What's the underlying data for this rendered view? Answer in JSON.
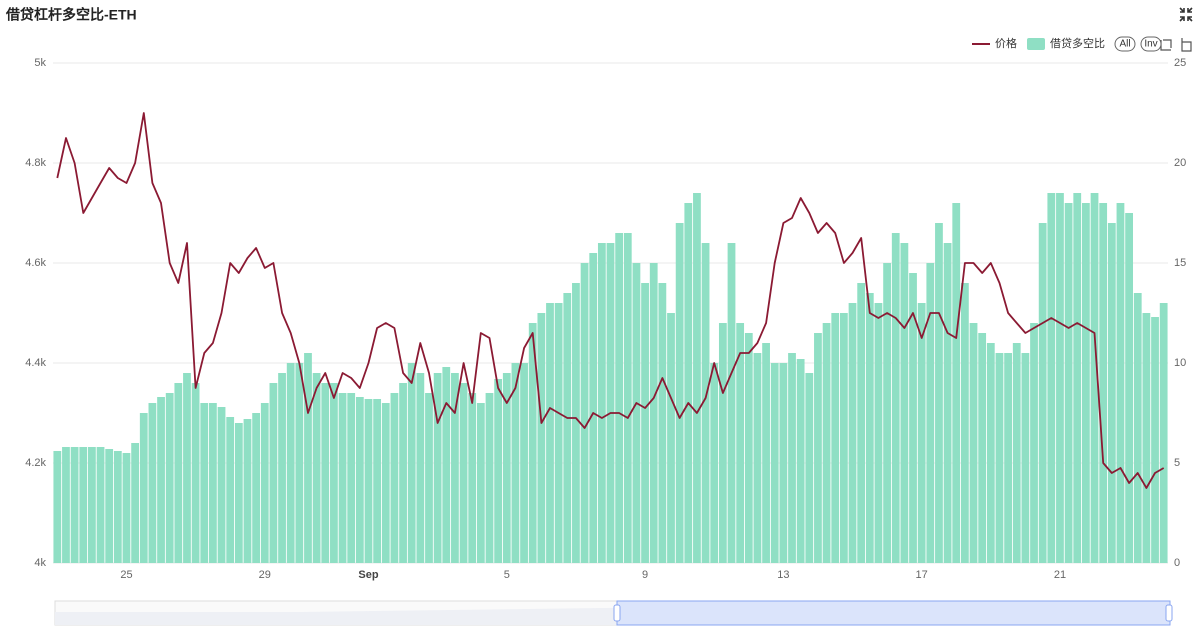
{
  "chart_data": {
    "type": "combo",
    "title": "借贷杠杆多空比-ETH",
    "buttons": [
      "All",
      "Inv"
    ],
    "categories": [
      null,
      null,
      null,
      null,
      null,
      null,
      null,
      null,
      "25",
      null,
      null,
      null,
      null,
      null,
      null,
      null,
      null,
      null,
      null,
      null,
      null,
      null,
      null,
      null,
      "29",
      null,
      null,
      null,
      null,
      null,
      null,
      null,
      null,
      null,
      null,
      null,
      "Sep",
      null,
      null,
      null,
      null,
      null,
      null,
      null,
      null,
      null,
      null,
      null,
      null,
      null,
      null,
      null,
      "5",
      null,
      null,
      null,
      null,
      null,
      null,
      null,
      null,
      null,
      null,
      null,
      null,
      null,
      null,
      null,
      "9",
      null,
      null,
      null,
      null,
      null,
      null,
      null,
      null,
      null,
      null,
      null,
      null,
      null,
      null,
      null,
      "13",
      null,
      null,
      null,
      null,
      null,
      null,
      null,
      null,
      null,
      null,
      null,
      null,
      null,
      null,
      null,
      "17",
      null,
      null,
      null,
      null,
      null,
      null,
      null,
      null,
      null,
      null,
      null,
      null,
      null,
      null,
      null,
      "21",
      null,
      null,
      null,
      null,
      null,
      null,
      null,
      null,
      null,
      null,
      null,
      null
    ],
    "series": [
      {
        "name": "价格",
        "type": "line",
        "axis": "y",
        "color": "#8b1a33",
        "values": [
          4770,
          4850,
          4800,
          4700,
          4730,
          4760,
          4790,
          4770,
          4760,
          4800,
          4900,
          4760,
          4720,
          4600,
          4560,
          4640,
          4350,
          4420,
          4440,
          4500,
          4600,
          4580,
          4610,
          4630,
          4590,
          4600,
          4500,
          4460,
          4400,
          4300,
          4350,
          4380,
          4330,
          4380,
          4370,
          4350,
          4400,
          4470,
          4480,
          4470,
          4380,
          4360,
          4440,
          4380,
          4280,
          4320,
          4300,
          4400,
          4320,
          4460,
          4450,
          4350,
          4320,
          4350,
          4430,
          4460,
          4280,
          4310,
          4300,
          4290,
          4290,
          4270,
          4300,
          4290,
          4300,
          4300,
          4290,
          4320,
          4310,
          4330,
          4370,
          4330,
          4290,
          4320,
          4300,
          4330,
          4400,
          4340,
          4380,
          4420,
          4420,
          4440,
          4480,
          4600,
          4680,
          4690,
          4730,
          4700,
          4660,
          4680,
          4660,
          4600,
          4620,
          4650,
          4500,
          4490,
          4500,
          4490,
          4470,
          4500,
          4450,
          4500,
          4500,
          4460,
          4450,
          4600,
          4600,
          4580,
          4600,
          4560,
          4500,
          4480,
          4460,
          4470,
          4480,
          4490,
          4480,
          4470,
          4480,
          4470,
          4460,
          4200,
          4180,
          4190,
          4160,
          4180,
          4150,
          4180,
          4190
        ]
      },
      {
        "name": "借贷多空比",
        "type": "bar",
        "axis": "y2",
        "color": "#8fdfc4",
        "values": [
          5.6,
          5.8,
          5.8,
          5.8,
          5.8,
          5.8,
          5.7,
          5.6,
          5.5,
          6,
          7.5,
          8,
          8.3,
          8.5,
          9,
          9.5,
          9,
          8,
          8,
          7.8,
          7.3,
          7,
          7.2,
          7.5,
          8,
          9,
          9.5,
          10,
          10,
          10.5,
          9.5,
          9,
          9,
          8.5,
          8.5,
          8.3,
          8.2,
          8.2,
          8,
          8.5,
          9,
          10,
          9.5,
          8.5,
          9.5,
          9.8,
          9.5,
          9,
          8.5,
          8,
          8.5,
          9.2,
          9.5,
          10,
          10,
          12,
          12.5,
          13,
          13,
          13.5,
          14,
          15,
          15.5,
          16,
          16,
          16.5,
          16.5,
          15,
          14,
          15,
          14,
          12.5,
          17,
          18,
          18.5,
          16,
          10,
          12,
          16,
          12,
          11.5,
          10.5,
          11,
          10,
          10,
          10.5,
          10.2,
          9.5,
          11.5,
          12,
          12.5,
          12.5,
          13,
          14,
          13.5,
          13,
          15,
          16.5,
          16,
          14.5,
          13,
          15,
          17,
          16,
          18,
          14,
          12,
          11.5,
          11,
          10.5,
          10.5,
          11,
          10.5,
          12,
          17,
          18.5,
          18.5,
          18,
          18.5,
          18,
          18.5,
          18,
          17,
          18,
          17.5,
          13.5,
          12.5,
          12.3,
          13
        ]
      }
    ],
    "ylim": [
      4000,
      5000
    ],
    "yticks": [
      {
        "value": 4000,
        "label": "4k"
      },
      {
        "value": 4200,
        "label": "4.2k"
      },
      {
        "value": 4400,
        "label": "4.4k"
      },
      {
        "value": 4600,
        "label": "4.6k"
      },
      {
        "value": 4800,
        "label": "4.8k"
      },
      {
        "value": 5000,
        "label": "5k"
      }
    ],
    "y2lim": [
      0,
      25
    ],
    "y2ticks": [
      0,
      5,
      10,
      15,
      20,
      25
    ],
    "grid": true,
    "legend": "top-right"
  }
}
